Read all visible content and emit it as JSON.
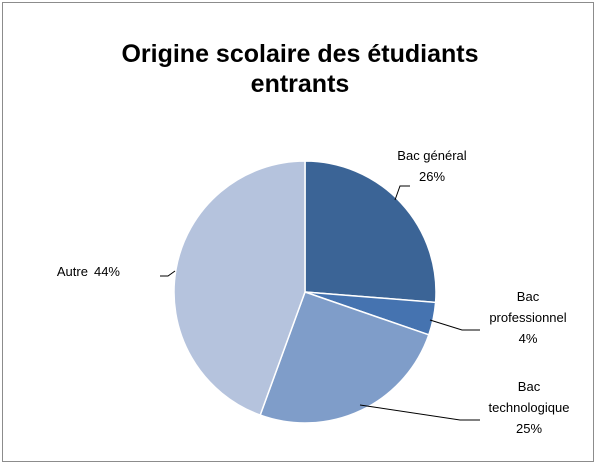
{
  "chart_data": {
    "type": "pie",
    "title": "Origine scolaire des étudiants entrants",
    "categories": [
      "Bac général",
      "Bac professionnel",
      "Bac technologique",
      "Autre"
    ],
    "values": [
      26,
      4,
      25,
      44
    ],
    "value_labels": [
      "26%",
      "4%",
      "25%",
      "44%"
    ],
    "colors": [
      "#3b6496",
      "#4573b0",
      "#7f9dc9",
      "#b5c3dd"
    ]
  }
}
